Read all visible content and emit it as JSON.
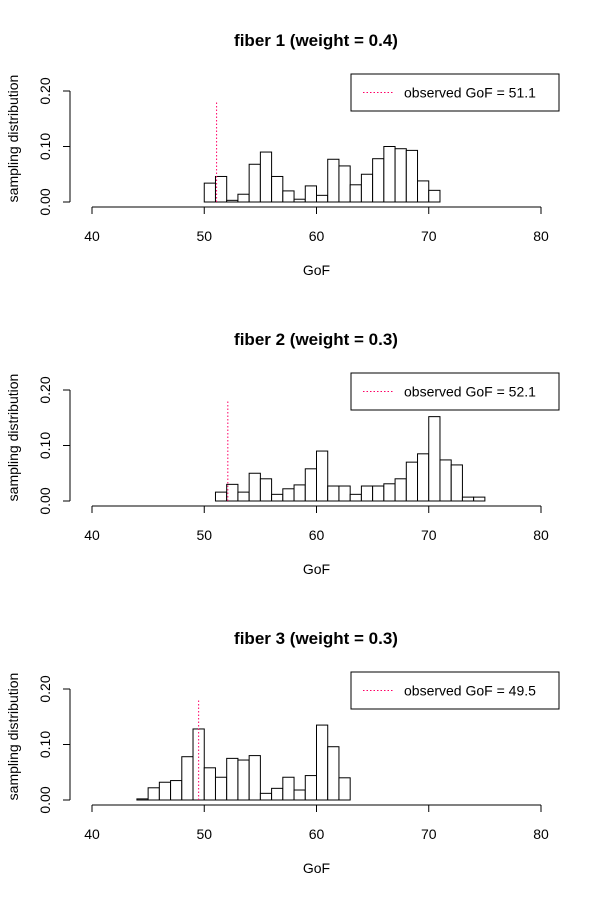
{
  "chart_data": [
    {
      "type": "bar",
      "title": "fiber 1 (weight = 0.4)",
      "xlabel": "GoF",
      "ylabel": "sampling distribution",
      "xlim": [
        40,
        80
      ],
      "ylim": [
        0,
        0.2
      ],
      "xticks": [
        "40",
        "50",
        "60",
        "70",
        "80"
      ],
      "yticks": [
        "0.00",
        "0.10",
        "0.20"
      ],
      "bin_width": 1,
      "bin_start": 50,
      "values": [
        0.034,
        0.046,
        0.003,
        0.014,
        0.068,
        0.09,
        0.046,
        0.02,
        0.005,
        0.029,
        0.012,
        0.077,
        0.065,
        0.031,
        0.05,
        0.078,
        0.1,
        0.096,
        0.093,
        0.038,
        0.021
      ],
      "observed": 51.1,
      "observed_color": "#ff0066",
      "legend_label": "observed GoF = 51.1",
      "legend_position": "top-right"
    },
    {
      "type": "bar",
      "title": "fiber 2 (weight = 0.3)",
      "xlabel": "GoF",
      "ylabel": "sampling distribution",
      "xlim": [
        40,
        80
      ],
      "ylim": [
        0,
        0.2
      ],
      "xticks": [
        "40",
        "50",
        "60",
        "70",
        "80"
      ],
      "yticks": [
        "0.00",
        "0.10",
        "0.20"
      ],
      "bin_width": 1,
      "bin_start": 51,
      "values": [
        0.016,
        0.03,
        0.016,
        0.05,
        0.04,
        0.012,
        0.022,
        0.029,
        0.058,
        0.09,
        0.027,
        0.027,
        0.012,
        0.027,
        0.027,
        0.031,
        0.04,
        0.07,
        0.085,
        0.152,
        0.074,
        0.065,
        0.007,
        0.007
      ],
      "observed": 52.1,
      "observed_color": "#ff0066",
      "legend_label": "observed GoF = 52.1",
      "legend_position": "top-right"
    },
    {
      "type": "bar",
      "title": "fiber 3 (weight = 0.3)",
      "xlabel": "GoF",
      "ylabel": "sampling distribution",
      "xlim": [
        40,
        80
      ],
      "ylim": [
        0,
        0.2
      ],
      "xticks": [
        "40",
        "50",
        "60",
        "70",
        "80"
      ],
      "yticks": [
        "0.00",
        "0.10",
        "0.20"
      ],
      "bin_width": 1,
      "bin_start": 44,
      "values": [
        0.002,
        0.022,
        0.032,
        0.035,
        0.078,
        0.128,
        0.058,
        0.041,
        0.075,
        0.072,
        0.08,
        0.012,
        0.021,
        0.041,
        0.018,
        0.044,
        0.135,
        0.096,
        0.04
      ],
      "observed": 49.5,
      "observed_color": "#ff0066",
      "legend_label": "observed GoF = 49.5",
      "legend_position": "top-right"
    }
  ]
}
